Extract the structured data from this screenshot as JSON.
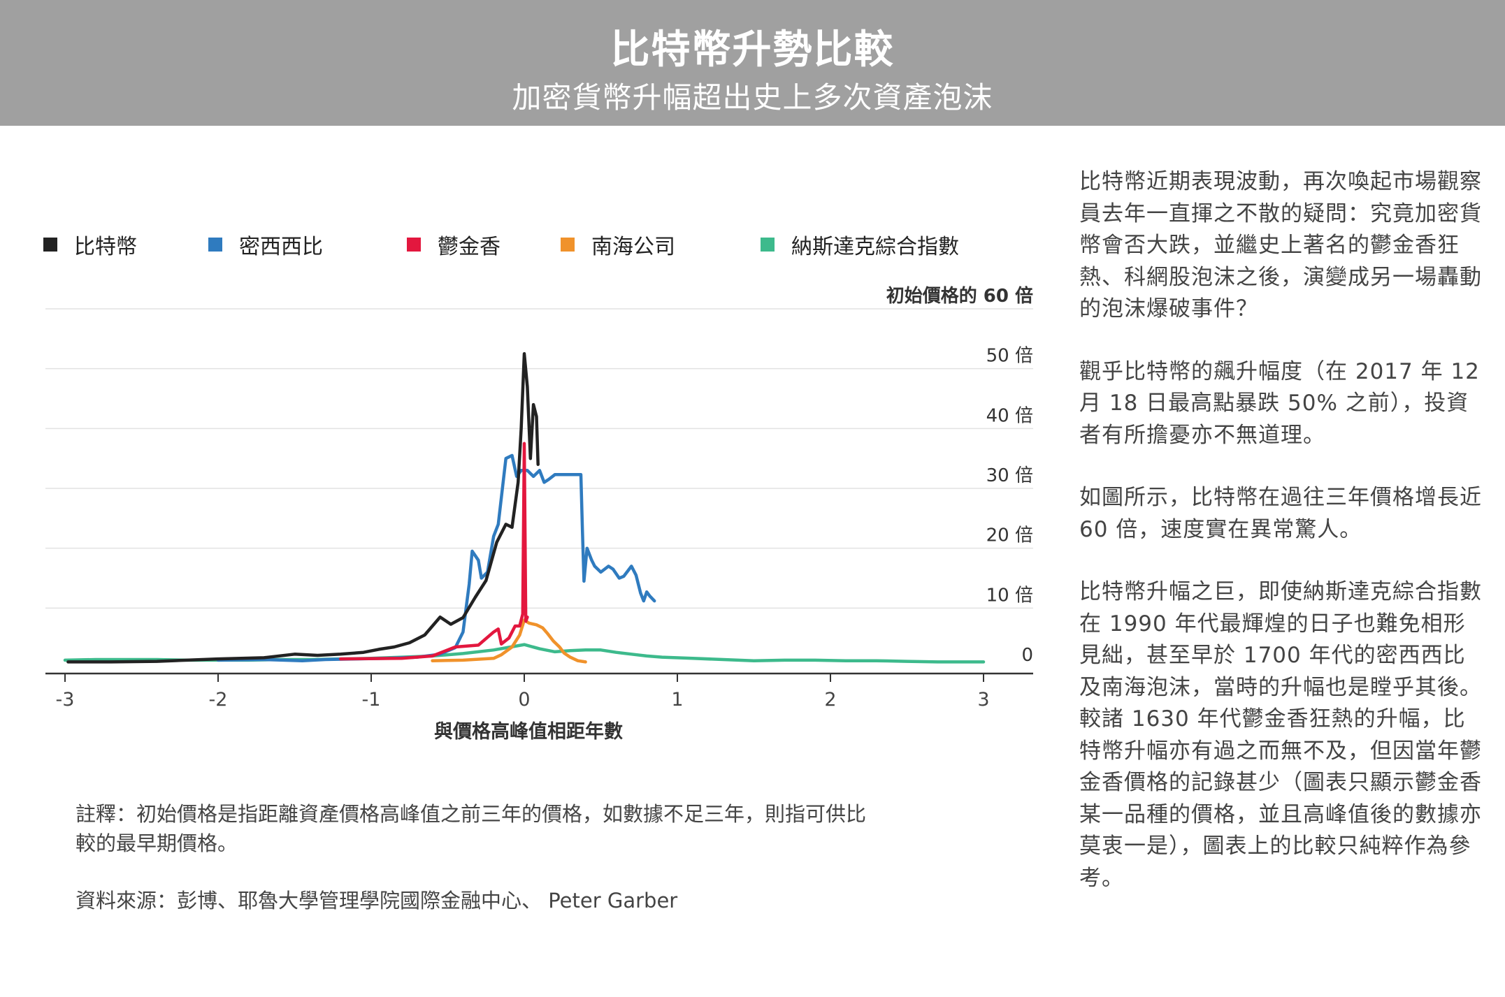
{
  "header": {
    "title": "比特幣升勢比較",
    "subtitle": "加密貨幣升幅超出史上多次資產泡沫"
  },
  "legend": [
    {
      "label": "比特幣",
      "color": "#222222"
    },
    {
      "label": "密西西比",
      "color": "#2f7bbf"
    },
    {
      "label": "鬱金香",
      "color": "#e3173e"
    },
    {
      "label": "南海公司",
      "color": "#f0922b"
    },
    {
      "label": "納斯達克綜合指數",
      "color": "#3dba8c"
    }
  ],
  "chart_data": {
    "type": "line",
    "xlabel": "與價格高峰值相距年數",
    "ylabel": "初始價格的 60 倍",
    "xlim": [
      -3,
      3
    ],
    "ylim": [
      0,
      60
    ],
    "x_ticks": [
      -3,
      -2,
      -1,
      0,
      1,
      2,
      3
    ],
    "x_tick_labels": [
      "-3",
      "-2",
      "-1",
      "0",
      "1",
      "2",
      "3"
    ],
    "y_ticks": [
      0,
      10,
      20,
      30,
      40,
      50,
      60
    ],
    "y_tick_labels": [
      "0",
      "10 倍",
      "20 倍",
      "30 倍",
      "40 倍",
      "50 倍",
      "初始價格的 60 倍"
    ],
    "grid": true,
    "series": [
      {
        "name": "比特幣",
        "color": "#222222",
        "points": [
          [
            -2.98,
            1
          ],
          [
            -2.7,
            1
          ],
          [
            -2.4,
            1.1
          ],
          [
            -2.0,
            1.5
          ],
          [
            -1.7,
            1.7
          ],
          [
            -1.5,
            2.3
          ],
          [
            -1.35,
            2.1
          ],
          [
            -1.2,
            2.3
          ],
          [
            -1.05,
            2.6
          ],
          [
            -0.95,
            3.1
          ],
          [
            -0.85,
            3.5
          ],
          [
            -0.75,
            4.2
          ],
          [
            -0.65,
            5.5
          ],
          [
            -0.55,
            8.5
          ],
          [
            -0.48,
            7.3
          ],
          [
            -0.4,
            8.4
          ],
          [
            -0.32,
            11.8
          ],
          [
            -0.25,
            14.6
          ],
          [
            -0.18,
            21
          ],
          [
            -0.12,
            24
          ],
          [
            -0.08,
            23.5
          ],
          [
            -0.04,
            31
          ],
          [
            -0.02,
            40
          ],
          [
            0.0,
            52.5
          ],
          [
            0.02,
            47
          ],
          [
            0.04,
            35
          ],
          [
            0.06,
            44
          ],
          [
            0.08,
            42
          ],
          [
            0.09,
            34
          ]
        ]
      },
      {
        "name": "密西西比",
        "color": "#2f7bbf",
        "points": [
          [
            -2.0,
            1.3
          ],
          [
            -1.7,
            1.4
          ],
          [
            -1.45,
            1.2
          ],
          [
            -1.3,
            1.4
          ],
          [
            -1.1,
            1.5
          ],
          [
            -0.9,
            1.6
          ],
          [
            -0.7,
            1.8
          ],
          [
            -0.55,
            2.3
          ],
          [
            -0.45,
            3.4
          ],
          [
            -0.4,
            6
          ],
          [
            -0.38,
            10
          ],
          [
            -0.36,
            14
          ],
          [
            -0.34,
            19.5
          ],
          [
            -0.3,
            18
          ],
          [
            -0.28,
            15
          ],
          [
            -0.24,
            16
          ],
          [
            -0.2,
            22
          ],
          [
            -0.17,
            24
          ],
          [
            -0.12,
            35
          ],
          [
            -0.08,
            35.5
          ],
          [
            -0.05,
            32
          ],
          [
            -0.02,
            33
          ],
          [
            0.02,
            33
          ],
          [
            0.06,
            32
          ],
          [
            0.1,
            33
          ],
          [
            0.13,
            31
          ],
          [
            0.16,
            31.5
          ],
          [
            0.2,
            32.3
          ],
          [
            0.37,
            32.3
          ],
          [
            0.38,
            23
          ],
          [
            0.39,
            14.5
          ],
          [
            0.41,
            20
          ],
          [
            0.44,
            18
          ],
          [
            0.46,
            17
          ],
          [
            0.5,
            16
          ],
          [
            0.55,
            17
          ],
          [
            0.58,
            16.5
          ],
          [
            0.62,
            15
          ],
          [
            0.65,
            15.3
          ],
          [
            0.7,
            17
          ],
          [
            0.73,
            15.5
          ],
          [
            0.76,
            12.5
          ],
          [
            0.78,
            11.2
          ],
          [
            0.8,
            12.7
          ],
          [
            0.82,
            12
          ],
          [
            0.85,
            11.2
          ]
        ]
      },
      {
        "name": "鬱金香",
        "color": "#e3173e",
        "points": [
          [
            -1.2,
            1.5
          ],
          [
            -0.8,
            1.6
          ],
          [
            -0.6,
            2
          ],
          [
            -0.45,
            3.5
          ],
          [
            -0.3,
            3.8
          ],
          [
            -0.2,
            6
          ],
          [
            -0.17,
            6.5
          ],
          [
            -0.15,
            4
          ],
          [
            -0.1,
            5
          ],
          [
            -0.06,
            7
          ],
          [
            -0.03,
            7
          ],
          [
            -0.01,
            9
          ],
          [
            0.0,
            37.5
          ],
          [
            0.01,
            7.8
          ],
          [
            0.02,
            8.5
          ]
        ]
      },
      {
        "name": "南海公司",
        "color": "#f0922b",
        "points": [
          [
            -0.6,
            1.2
          ],
          [
            -0.4,
            1.3
          ],
          [
            -0.2,
            1.6
          ],
          [
            -0.15,
            2.2
          ],
          [
            -0.08,
            3.5
          ],
          [
            -0.03,
            5.5
          ],
          [
            0.0,
            8
          ],
          [
            0.03,
            7.5
          ],
          [
            0.08,
            7.2
          ],
          [
            0.12,
            6.7
          ],
          [
            0.15,
            5.8
          ],
          [
            0.19,
            4.5
          ],
          [
            0.23,
            3.5
          ],
          [
            0.26,
            2.5
          ],
          [
            0.3,
            1.8
          ],
          [
            0.35,
            1.2
          ],
          [
            0.4,
            1.0
          ]
        ]
      },
      {
        "name": "納斯達克綜合指數",
        "color": "#3dba8c",
        "points": [
          [
            -3.0,
            1.3
          ],
          [
            -2.8,
            1.4
          ],
          [
            -2.6,
            1.4
          ],
          [
            -2.4,
            1.4
          ],
          [
            -2.2,
            1.3
          ],
          [
            -2.0,
            1.3
          ],
          [
            -1.8,
            1.3
          ],
          [
            -1.6,
            1.4
          ],
          [
            -1.4,
            1.4
          ],
          [
            -1.2,
            1.5
          ],
          [
            -1.0,
            1.6
          ],
          [
            -0.8,
            1.8
          ],
          [
            -0.6,
            2.0
          ],
          [
            -0.4,
            2.4
          ],
          [
            -0.2,
            3.0
          ],
          [
            0.0,
            3.9
          ],
          [
            0.1,
            3.2
          ],
          [
            0.2,
            2.7
          ],
          [
            0.3,
            2.9
          ],
          [
            0.4,
            3.0
          ],
          [
            0.5,
            3.0
          ],
          [
            0.6,
            2.6
          ],
          [
            0.7,
            2.3
          ],
          [
            0.8,
            2.0
          ],
          [
            0.9,
            1.8
          ],
          [
            1.1,
            1.6
          ],
          [
            1.3,
            1.4
          ],
          [
            1.5,
            1.2
          ],
          [
            1.7,
            1.3
          ],
          [
            1.9,
            1.3
          ],
          [
            2.1,
            1.2
          ],
          [
            2.3,
            1.2
          ],
          [
            2.5,
            1.1
          ],
          [
            2.7,
            1.0
          ],
          [
            2.9,
            1.0
          ],
          [
            3.0,
            1.0
          ]
        ]
      }
    ]
  },
  "notes": {
    "footnote": "註釋：初始價格是指距離資產價格高峰值之前三年的價格，如數據不足三年，則指可供比較的最早期價格。",
    "source": "資料來源：彭博、耶魯大學管理學院國際金融中心、 Peter Garber"
  },
  "side_text": [
    "比特幣近期表現波動，再次喚起市場觀察員去年一直揮之不散的疑問：究竟加密貨幣會否大跌，並繼史上著名的鬱金香狂熱、科網股泡沫之後，演變成另一場轟動的泡沫爆破事件？",
    "觀乎比特幣的飆升幅度（在 2017 年 12 月 18 日最高點暴跌 50% 之前），投資者有所擔憂亦不無道理。",
    "如圖所示，比特幣在過往三年價格增長近 60 倍，速度實在異常驚人。",
    "比特幣升幅之巨，即使納斯達克綜合指數在 1990 年代最輝煌的日子也難免相形見絀，甚至早於 1700 年代的密西西比及南海泡沫，當時的升幅也是瞠乎其後。較諸 1630 年代鬱金香狂熱的升幅，比特幣升幅亦有過之而無不及，但因當年鬱金香價格的記錄甚少（圖表只顯示鬱金香某一品種的價格，並且高峰值後的數據亦莫衷一是），圖表上的比較只純粹作為參考。"
  ]
}
